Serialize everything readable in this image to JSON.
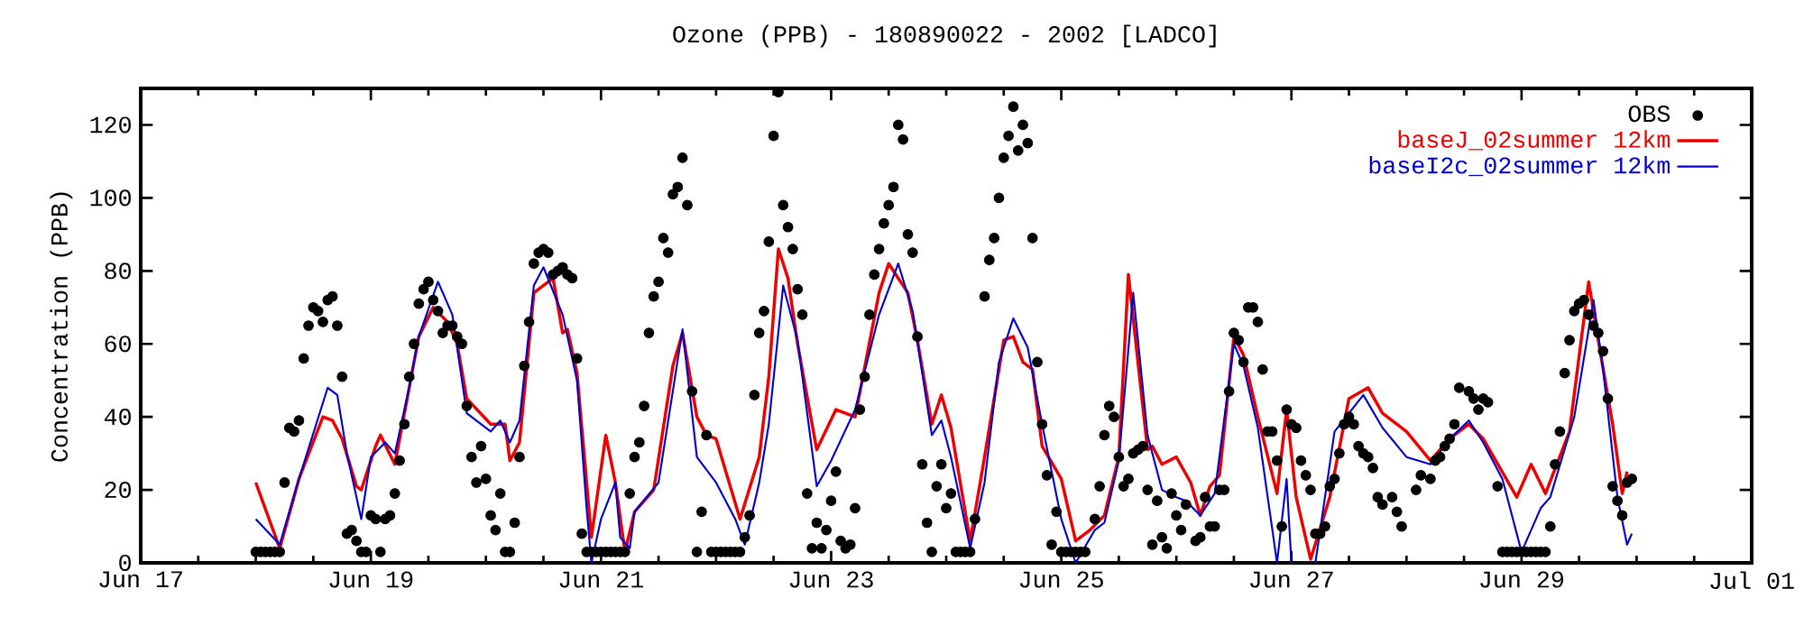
{
  "chart_data": {
    "type": "line",
    "title": "Ozone (PPB) - 180890022 - 2002 [LADCO]",
    "ylabel": "Concentration (PPB)",
    "xlim": [
      "2002-06-17",
      "2002-07-01"
    ],
    "xticks": [
      {
        "value": "2002-06-17",
        "label": "Jun 17"
      },
      {
        "value": "2002-06-19",
        "label": "Jun 19"
      },
      {
        "value": "2002-06-21",
        "label": "Jun 21"
      },
      {
        "value": "2002-06-23",
        "label": "Jun 23"
      },
      {
        "value": "2002-06-25",
        "label": "Jun 25"
      },
      {
        "value": "2002-06-27",
        "label": "Jun 27"
      },
      {
        "value": "2002-06-29",
        "label": "Jun 29"
      },
      {
        "value": "2002-07-01",
        "label": "Jul 01"
      }
    ],
    "ylim": [
      0,
      130
    ],
    "yticks": [
      0,
      20,
      40,
      60,
      80,
      100,
      120
    ],
    "legend": "top right",
    "series": [
      {
        "name": "OBS",
        "type": "scatter",
        "color": "#000000",
        "x": [
          "2002-06-18T00:00",
          "2002-06-18T01:00",
          "2002-06-18T02:00",
          "2002-06-18T03:00",
          "2002-06-18T04:00",
          "2002-06-18T05:00",
          "2002-06-18T06:00",
          "2002-06-18T07:00",
          "2002-06-18T08:00",
          "2002-06-18T09:00",
          "2002-06-18T10:00",
          "2002-06-18T11:00",
          "2002-06-18T12:00",
          "2002-06-18T13:00",
          "2002-06-18T14:00",
          "2002-06-18T15:00",
          "2002-06-18T16:00",
          "2002-06-18T17:00",
          "2002-06-18T18:00",
          "2002-06-18T19:00",
          "2002-06-18T20:00",
          "2002-06-18T21:00",
          "2002-06-18T22:00",
          "2002-06-18T23:00",
          "2002-06-19T00:00",
          "2002-06-19T01:00",
          "2002-06-19T02:00",
          "2002-06-19T03:00",
          "2002-06-19T04:00",
          "2002-06-19T05:00",
          "2002-06-19T06:00",
          "2002-06-19T07:00",
          "2002-06-19T08:00",
          "2002-06-19T09:00",
          "2002-06-19T10:00",
          "2002-06-19T11:00",
          "2002-06-19T12:00",
          "2002-06-19T13:00",
          "2002-06-19T14:00",
          "2002-06-19T15:00",
          "2002-06-19T16:00",
          "2002-06-19T17:00",
          "2002-06-19T18:00",
          "2002-06-19T19:00",
          "2002-06-19T20:00",
          "2002-06-19T21:00",
          "2002-06-19T22:00",
          "2002-06-19T23:00",
          "2002-06-20T00:00",
          "2002-06-20T01:00",
          "2002-06-20T02:00",
          "2002-06-20T03:00",
          "2002-06-20T04:00",
          "2002-06-20T05:00",
          "2002-06-20T06:00",
          "2002-06-20T07:00",
          "2002-06-20T08:00",
          "2002-06-20T09:00",
          "2002-06-20T10:00",
          "2002-06-20T11:00",
          "2002-06-20T12:00",
          "2002-06-20T13:00",
          "2002-06-20T14:00",
          "2002-06-20T15:00",
          "2002-06-20T16:00",
          "2002-06-20T17:00",
          "2002-06-20T18:00",
          "2002-06-20T19:00",
          "2002-06-20T20:00",
          "2002-06-20T21:00",
          "2002-06-20T22:00",
          "2002-06-20T23:00",
          "2002-06-21T00:00",
          "2002-06-21T01:00",
          "2002-06-21T02:00",
          "2002-06-21T03:00",
          "2002-06-21T04:00",
          "2002-06-21T05:00",
          "2002-06-21T06:00",
          "2002-06-21T07:00",
          "2002-06-21T08:00",
          "2002-06-21T09:00",
          "2002-06-21T10:00",
          "2002-06-21T11:00",
          "2002-06-21T12:00",
          "2002-06-21T13:00",
          "2002-06-21T14:00",
          "2002-06-21T15:00",
          "2002-06-21T16:00",
          "2002-06-21T17:00",
          "2002-06-21T18:00",
          "2002-06-21T19:00",
          "2002-06-21T20:00",
          "2002-06-21T21:00",
          "2002-06-21T22:00",
          "2002-06-21T23:00",
          "2002-06-22T00:00",
          "2002-06-22T01:00",
          "2002-06-22T02:00",
          "2002-06-22T03:00",
          "2002-06-22T04:00",
          "2002-06-22T05:00",
          "2002-06-22T06:00",
          "2002-06-22T07:00",
          "2002-06-22T08:00",
          "2002-06-22T09:00",
          "2002-06-22T10:00",
          "2002-06-22T11:00",
          "2002-06-22T12:00",
          "2002-06-22T13:00",
          "2002-06-22T14:00",
          "2002-06-22T15:00",
          "2002-06-22T16:00",
          "2002-06-22T17:00",
          "2002-06-22T18:00",
          "2002-06-22T19:00",
          "2002-06-22T20:00",
          "2002-06-22T21:00",
          "2002-06-22T22:00",
          "2002-06-22T23:00",
          "2002-06-23T00:00",
          "2002-06-23T01:00",
          "2002-06-23T02:00",
          "2002-06-23T03:00",
          "2002-06-23T04:00",
          "2002-06-23T05:00",
          "2002-06-23T06:00",
          "2002-06-23T07:00",
          "2002-06-23T08:00",
          "2002-06-23T09:00",
          "2002-06-23T10:00",
          "2002-06-23T11:00",
          "2002-06-23T12:00",
          "2002-06-23T13:00",
          "2002-06-23T14:00",
          "2002-06-23T15:00",
          "2002-06-23T16:00",
          "2002-06-23T17:00",
          "2002-06-23T18:00",
          "2002-06-23T19:00",
          "2002-06-23T20:00",
          "2002-06-23T21:00",
          "2002-06-23T22:00",
          "2002-06-23T23:00",
          "2002-06-24T00:00",
          "2002-06-24T01:00",
          "2002-06-24T02:00",
          "2002-06-24T03:00",
          "2002-06-24T04:00",
          "2002-06-24T05:00",
          "2002-06-24T06:00",
          "2002-06-24T07:00",
          "2002-06-24T08:00",
          "2002-06-24T09:00",
          "2002-06-24T10:00",
          "2002-06-24T11:00",
          "2002-06-24T12:00",
          "2002-06-24T13:00",
          "2002-06-24T14:00",
          "2002-06-24T15:00",
          "2002-06-24T16:00",
          "2002-06-24T17:00",
          "2002-06-24T18:00",
          "2002-06-24T19:00",
          "2002-06-24T20:00",
          "2002-06-24T21:00",
          "2002-06-24T22:00",
          "2002-06-24T23:00",
          "2002-06-25T00:00",
          "2002-06-25T01:00",
          "2002-06-25T02:00",
          "2002-06-25T03:00",
          "2002-06-25T04:00",
          "2002-06-25T05:00",
          "2002-06-25T06:00",
          "2002-06-25T07:00",
          "2002-06-25T08:00",
          "2002-06-25T09:00",
          "2002-06-25T10:00",
          "2002-06-25T11:00",
          "2002-06-25T12:00",
          "2002-06-25T13:00",
          "2002-06-25T14:00",
          "2002-06-25T15:00",
          "2002-06-25T16:00",
          "2002-06-25T17:00",
          "2002-06-25T18:00",
          "2002-06-25T19:00",
          "2002-06-25T20:00",
          "2002-06-25T21:00",
          "2002-06-25T22:00",
          "2002-06-25T23:00",
          "2002-06-26T00:00",
          "2002-06-26T01:00",
          "2002-06-26T02:00",
          "2002-06-26T03:00",
          "2002-06-26T04:00",
          "2002-06-26T05:00",
          "2002-06-26T06:00",
          "2002-06-26T07:00",
          "2002-06-26T08:00",
          "2002-06-26T09:00",
          "2002-06-26T10:00",
          "2002-06-26T11:00",
          "2002-06-26T12:00",
          "2002-06-26T13:00",
          "2002-06-26T14:00",
          "2002-06-26T15:00",
          "2002-06-26T16:00",
          "2002-06-26T17:00",
          "2002-06-26T18:00",
          "2002-06-26T19:00",
          "2002-06-26T20:00",
          "2002-06-26T21:00",
          "2002-06-26T22:00",
          "2002-06-26T23:00",
          "2002-06-27T00:00",
          "2002-06-27T01:00",
          "2002-06-27T02:00",
          "2002-06-27T03:00",
          "2002-06-27T04:00",
          "2002-06-27T05:00",
          "2002-06-27T06:00",
          "2002-06-27T07:00",
          "2002-06-27T08:00",
          "2002-06-27T09:00",
          "2002-06-27T10:00",
          "2002-06-27T11:00",
          "2002-06-27T12:00",
          "2002-06-27T13:00",
          "2002-06-27T14:00",
          "2002-06-27T15:00",
          "2002-06-27T16:00",
          "2002-06-27T17:00",
          "2002-06-27T18:00",
          "2002-06-27T19:00",
          "2002-06-27T20:00",
          "2002-06-27T21:00",
          "2002-06-27T22:00",
          "2002-06-27T23:00",
          "2002-06-28T00:00",
          "2002-06-28T01:00",
          "2002-06-28T02:00",
          "2002-06-28T03:00",
          "2002-06-28T04:00",
          "2002-06-28T05:00",
          "2002-06-28T06:00",
          "2002-06-28T07:00",
          "2002-06-28T08:00",
          "2002-06-28T09:00",
          "2002-06-28T10:00",
          "2002-06-28T11:00",
          "2002-06-28T12:00",
          "2002-06-28T13:00",
          "2002-06-28T14:00",
          "2002-06-28T15:00",
          "2002-06-28T16:00",
          "2002-06-28T17:00",
          "2002-06-28T18:00",
          "2002-06-28T19:00",
          "2002-06-28T20:00",
          "2002-06-28T21:00",
          "2002-06-28T22:00",
          "2002-06-28T23:00",
          "2002-06-29T00:00",
          "2002-06-29T01:00",
          "2002-06-29T02:00",
          "2002-06-29T03:00",
          "2002-06-29T04:00",
          "2002-06-29T05:00",
          "2002-06-29T06:00",
          "2002-06-29T07:00",
          "2002-06-29T08:00",
          "2002-06-29T09:00",
          "2002-06-29T10:00",
          "2002-06-29T11:00",
          "2002-06-29T12:00",
          "2002-06-29T13:00",
          "2002-06-29T14:00",
          "2002-06-29T15:00",
          "2002-06-29T16:00",
          "2002-06-29T17:00",
          "2002-06-29T18:00",
          "2002-06-29T19:00",
          "2002-06-29T20:00",
          "2002-06-29T21:00",
          "2002-06-29T22:00",
          "2002-06-29T23:00"
        ],
        "values": [
          3,
          3,
          3,
          3,
          3,
          3,
          22,
          37,
          36,
          39,
          56,
          65,
          70,
          69,
          66,
          72,
          73,
          65,
          51,
          8,
          9,
          6,
          3,
          3,
          13,
          12,
          3,
          12,
          13,
          19,
          28,
          38,
          51,
          60,
          71,
          75,
          77,
          72,
          69,
          63,
          65,
          65,
          62,
          60,
          43,
          29,
          22,
          32,
          23,
          13,
          9,
          19,
          3,
          3,
          11,
          29,
          54,
          66,
          82,
          85,
          86,
          85,
          79,
          80,
          81,
          79,
          78,
          56,
          8,
          3,
          3,
          3,
          3,
          3,
          3,
          3,
          3,
          3,
          19,
          29,
          33,
          43,
          63,
          73,
          77,
          89,
          85,
          101,
          103,
          111,
          98,
          47,
          3,
          14,
          35,
          3,
          3,
          3,
          3,
          3,
          3,
          3,
          7,
          13,
          46,
          63,
          69,
          88,
          117,
          129,
          98,
          92,
          86,
          75,
          68,
          19,
          4,
          11,
          4,
          9,
          17,
          25,
          6,
          4,
          5,
          15,
          42,
          51,
          68,
          79,
          86,
          93,
          98,
          103,
          120,
          116,
          90,
          85,
          62,
          27,
          11,
          3,
          21,
          27,
          15,
          19,
          3,
          3,
          3,
          3,
          12,
          null,
          73,
          83,
          89,
          100,
          111,
          117,
          125,
          113,
          120,
          115,
          89,
          55,
          38,
          24,
          5,
          14,
          3,
          3,
          3,
          3,
          3,
          3,
          null,
          12,
          21,
          35,
          43,
          40,
          29,
          21,
          23,
          30,
          31,
          32,
          20,
          5,
          17,
          7,
          4,
          19,
          13,
          9,
          16,
          null,
          6,
          7,
          18,
          10,
          10,
          20,
          20,
          47,
          63,
          61,
          55,
          70,
          70,
          66,
          53,
          36,
          36,
          28,
          10,
          42,
          38,
          37,
          28,
          24,
          20,
          8,
          8,
          10,
          21,
          23,
          30,
          38,
          40,
          38,
          32,
          30,
          29,
          26,
          18,
          16,
          null,
          18,
          14,
          10,
          null,
          null,
          20,
          24,
          null,
          23,
          28,
          29,
          32,
          34,
          38,
          48,
          null,
          47,
          45,
          42,
          45,
          44,
          null,
          21,
          3,
          3,
          3,
          3,
          3,
          3,
          3,
          3,
          3,
          3,
          10,
          27,
          36,
          52,
          61,
          69,
          71,
          72,
          68,
          65,
          63,
          58,
          45,
          21,
          17,
          13,
          22,
          23
        ]
      },
      {
        "name": "baseJ_02summer 12km",
        "color": "#ee0000",
        "x": [
          "2002-06-18T00:00",
          "2002-06-18T05:00",
          "2002-06-18T09:00",
          "2002-06-18T14:00",
          "2002-06-18T16:00",
          "2002-06-18T18:00",
          "2002-06-18T21:00",
          "2002-06-18T22:00",
          "2002-06-19T01:00",
          "2002-06-19T02:00",
          "2002-06-19T05:00",
          "2002-06-19T08:00",
          "2002-06-19T10:00",
          "2002-06-19T13:00",
          "2002-06-19T16:00",
          "2002-06-19T18:00",
          "2002-06-19T20:00",
          "2002-06-20T01:00",
          "2002-06-20T04:00",
          "2002-06-20T05:00",
          "2002-06-20T07:00",
          "2002-06-20T10:00",
          "2002-06-20T14:00",
          "2002-06-20T16:00",
          "2002-06-20T17:00",
          "2002-06-20T19:00",
          "2002-06-20T22:00",
          "2002-06-21T01:00",
          "2002-06-21T03:00",
          "2002-06-21T05:00",
          "2002-06-21T07:00",
          "2002-06-21T11:00",
          "2002-06-21T15:00",
          "2002-06-21T17:00",
          "2002-06-21T20:00",
          "2002-06-21T22:00",
          "2002-06-22T00:00",
          "2002-06-22T05:00",
          "2002-06-22T09:00",
          "2002-06-22T11:00",
          "2002-06-22T13:00",
          "2002-06-22T15:00",
          "2002-06-22T17:00",
          "2002-06-22T21:00",
          "2002-06-23T01:00",
          "2002-06-23T05:00",
          "2002-06-23T10:00",
          "2002-06-23T12:00",
          "2002-06-23T16:00",
          "2002-06-23T18:00",
          "2002-06-23T21:00",
          "2002-06-23T23:00",
          "2002-06-24T01:00",
          "2002-06-24T05:00",
          "2002-06-24T08:00",
          "2002-06-24T12:00",
          "2002-06-24T14:00",
          "2002-06-24T16:00",
          "2002-06-24T18:00",
          "2002-06-24T20:00",
          "2002-06-25T00:00",
          "2002-06-25T03:00",
          "2002-06-25T06:00",
          "2002-06-25T09:00",
          "2002-06-25T12:00",
          "2002-06-25T14:00",
          "2002-06-25T16:00",
          "2002-06-25T18:00",
          "2002-06-25T19:00",
          "2002-06-25T21:00",
          "2002-06-26T00:00",
          "2002-06-26T03:00",
          "2002-06-26T05:00",
          "2002-06-26T07:00",
          "2002-06-26T09:00",
          "2002-06-26T12:00",
          "2002-06-26T14:00",
          "2002-06-26T17:00",
          "2002-06-26T21:00",
          "2002-06-26T23:00",
          "2002-06-27T01:00",
          "2002-06-27T04:00",
          "2002-06-27T08:00",
          "2002-06-27T12:00",
          "2002-06-27T16:00",
          "2002-06-27T19:00",
          "2002-06-28T00:00",
          "2002-06-28T05:00",
          "2002-06-28T09:00",
          "2002-06-28T13:00",
          "2002-06-28T16:00",
          "2002-06-28T23:00",
          "2002-06-29T02:00",
          "2002-06-29T05:00",
          "2002-06-29T10:00",
          "2002-06-29T14:00",
          "2002-06-29T16:00",
          "2002-06-29T19:00",
          "2002-06-29T21:00",
          "2002-06-29T22:00"
        ],
        "values": [
          22,
          4,
          23,
          40,
          39,
          34,
          21,
          20,
          32,
          35,
          27,
          48,
          62,
          70,
          66,
          60,
          45,
          38,
          38,
          28,
          33,
          74,
          78,
          63,
          64,
          52,
          7,
          35,
          22,
          3,
          14,
          20,
          54,
          63,
          40,
          35,
          34,
          12,
          29,
          51,
          86,
          78,
          60,
          31,
          42,
          40,
          74,
          82,
          74,
          61,
          38,
          46,
          37,
          6,
          29,
          61,
          62,
          55,
          53,
          32,
          23,
          6,
          9,
          13,
          29,
          79,
          55,
          31,
          32,
          27,
          29,
          22,
          13,
          21,
          24,
          62,
          57,
          40,
          19,
          42,
          18,
          1,
          18,
          45,
          48,
          41,
          36,
          28,
          34,
          38,
          34,
          18,
          27,
          19,
          36,
          77,
          61,
          38,
          19,
          25
        ]
      },
      {
        "name": "baseI2c_02summer 12km",
        "color": "#0000cc",
        "x": [
          "2002-06-18T00:00",
          "2002-06-18T05:00",
          "2002-06-18T09:00",
          "2002-06-18T15:00",
          "2002-06-18T17:00",
          "2002-06-18T19:00",
          "2002-06-18T22:00",
          "2002-06-19T00:00",
          "2002-06-19T03:00",
          "2002-06-19T05:00",
          "2002-06-19T08:00",
          "2002-06-19T10:00",
          "2002-06-19T14:00",
          "2002-06-19T17:00",
          "2002-06-19T20:00",
          "2002-06-20T01:00",
          "2002-06-20T03:00",
          "2002-06-20T05:00",
          "2002-06-20T07:00",
          "2002-06-20T10:00",
          "2002-06-20T12:00",
          "2002-06-20T16:00",
          "2002-06-20T19:00",
          "2002-06-20T21:00",
          "2002-06-20T22:00",
          "2002-06-21T00:00",
          "2002-06-21T03:00",
          "2002-06-21T04:00",
          "2002-06-21T06:00",
          "2002-06-21T07:00",
          "2002-06-21T12:00",
          "2002-06-21T17:00",
          "2002-06-21T20:00",
          "2002-06-22T00:00",
          "2002-06-22T04:00",
          "2002-06-22T06:00",
          "2002-06-22T09:00",
          "2002-06-22T11:00",
          "2002-06-22T14:00",
          "2002-06-22T17:00",
          "2002-06-22T21:00",
          "2002-06-23T00:00",
          "2002-06-23T05:00",
          "2002-06-23T10:00",
          "2002-06-23T14:00",
          "2002-06-23T17:00",
          "2002-06-23T21:00",
          "2002-06-23T23:00",
          "2002-06-24T01:00",
          "2002-06-24T05:00",
          "2002-06-24T08:00",
          "2002-06-24T11:00",
          "2002-06-24T14:00",
          "2002-06-24T17:00",
          "2002-06-24T20:00",
          "2002-06-25T00:00",
          "2002-06-25T03:00",
          "2002-06-25T07:00",
          "2002-06-25T09:00",
          "2002-06-25T12:00",
          "2002-06-25T15:00",
          "2002-06-25T18:00",
          "2002-06-25T21:00",
          "2002-06-26T00:00",
          "2002-06-26T02:00",
          "2002-06-26T05:00",
          "2002-06-26T08:00",
          "2002-06-26T12:00",
          "2002-06-26T14:00",
          "2002-06-26T17:00",
          "2002-06-26T21:00",
          "2002-06-26T23:00",
          "2002-06-27T00:00",
          "2002-06-27T05:00",
          "2002-06-27T09:00",
          "2002-06-27T12:00",
          "2002-06-27T15:00",
          "2002-06-27T19:00",
          "2002-06-28T00:00",
          "2002-06-28T05:00",
          "2002-06-28T09:00",
          "2002-06-28T13:00",
          "2002-06-28T16:00",
          "2002-06-28T20:00",
          "2002-06-29T00:00",
          "2002-06-29T04:00",
          "2002-06-29T06:00",
          "2002-06-29T11:00",
          "2002-06-29T15:00",
          "2002-06-29T17:00",
          "2002-06-29T20:00",
          "2002-06-29T22:00",
          "2002-06-29T23:00"
        ],
        "values": [
          12,
          5,
          23,
          48,
          46,
          30,
          12,
          29,
          33,
          30,
          48,
          62,
          77,
          68,
          41,
          36,
          39,
          33,
          39,
          76,
          81,
          68,
          50,
          15,
          0,
          12,
          22,
          7,
          4,
          14,
          22,
          64,
          29,
          22,
          12,
          5,
          22,
          38,
          76,
          61,
          21,
          28,
          42,
          68,
          82,
          69,
          35,
          39,
          29,
          4,
          22,
          55,
          67,
          59,
          38,
          12,
          0,
          9,
          11,
          28,
          74,
          35,
          20,
          18,
          17,
          13,
          19,
          60,
          54,
          37,
          0,
          23,
          0,
          0,
          36,
          41,
          46,
          37,
          29,
          27,
          34,
          39,
          33,
          23,
          3,
          15,
          18,
          40,
          72,
          53,
          18,
          5,
          8
        ]
      }
    ]
  }
}
